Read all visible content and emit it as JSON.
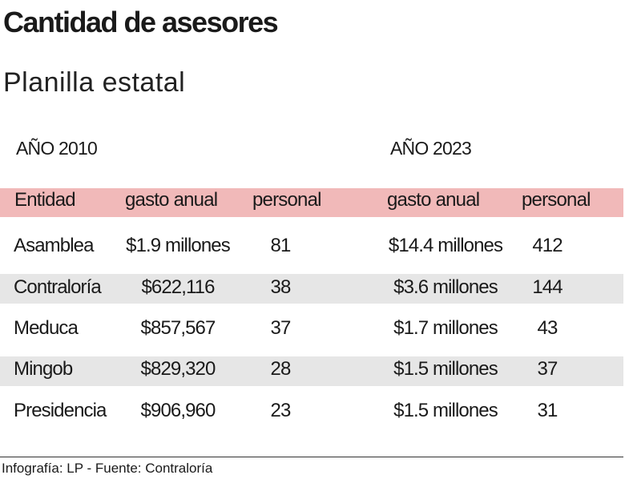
{
  "header": {
    "title": "Cantidad de asesores",
    "subtitle": "Planilla estatal"
  },
  "table": {
    "year_labels": [
      "AÑO 2010",
      "AÑO 2023"
    ],
    "columns": [
      "Entidad",
      "gasto anual",
      "personal",
      "gasto anual",
      "personal"
    ],
    "rows": [
      [
        "Asamblea",
        "$1.9 millones",
        81,
        "$14.4 millones",
        412
      ],
      [
        "Contraloría",
        "$622,116",
        38,
        "$3.6 millones",
        144
      ],
      [
        "Meduca",
        "$857,567",
        37,
        "$1.7 millones",
        43
      ],
      [
        "Mingob",
        "$829,320",
        28,
        "$1.5 millones",
        37
      ],
      [
        "Presidencia",
        "$906,960",
        23,
        "$1.5 millones",
        31
      ]
    ]
  },
  "footer": {
    "source": "Infografía: LP - Fuente: Contraloría"
  }
}
